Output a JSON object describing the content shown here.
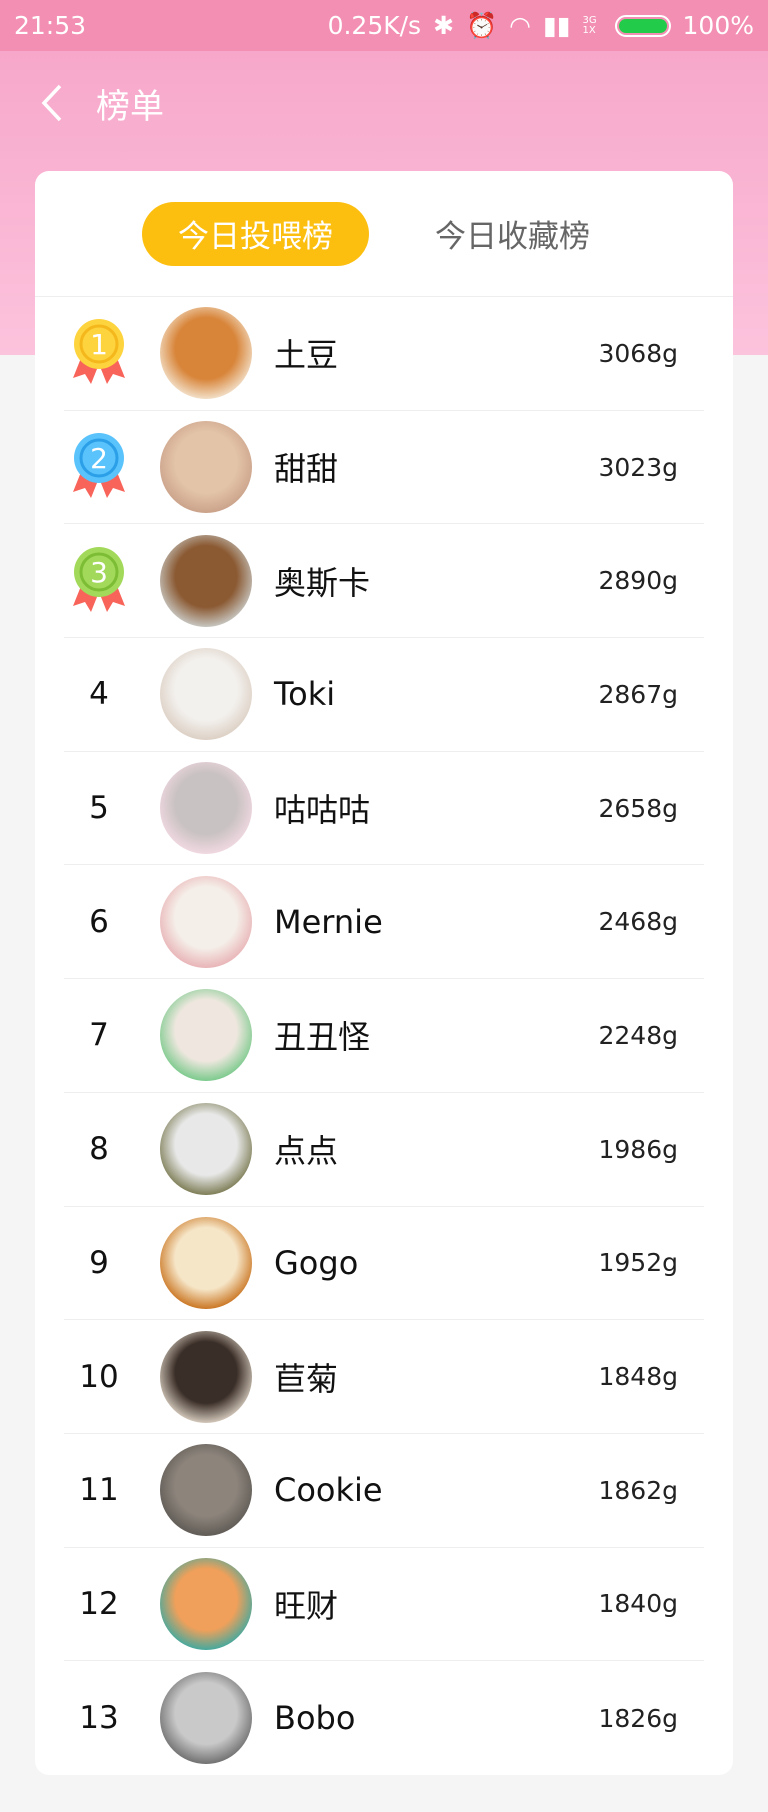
{
  "status_bar": {
    "time": "21:53",
    "speed": "0.25K/s",
    "network": "3G 1X",
    "battery": "100%",
    "battery_level": 100
  },
  "header": {
    "title": "榜单",
    "back_icon": "chevron-left-icon"
  },
  "tabs": [
    {
      "label": "今日投喂榜",
      "active": true
    },
    {
      "label": "今日收藏榜",
      "active": false
    }
  ],
  "colors": {
    "accent": "#fcbf10",
    "header_pink": "#f38fb2",
    "gold": "#fdd33e",
    "silver_blue": "#5ac3fb",
    "bronze_green": "#a3d95a",
    "ribbon": "#f8645a"
  },
  "ranking": [
    {
      "rank": "1",
      "name": "土豆",
      "value": "3068g",
      "avatar": [
        "#d8853a",
        "#f3e2cc"
      ]
    },
    {
      "rank": "2",
      "name": "甜甜",
      "value": "3023g",
      "avatar": [
        "#e3c4a8",
        "#caa18a"
      ]
    },
    {
      "rank": "3",
      "name": "奥斯卡",
      "value": "2890g",
      "avatar": [
        "#8b5a33",
        "#c9c9c4"
      ]
    },
    {
      "rank": "4",
      "name": "Toki",
      "value": "2867g",
      "avatar": [
        "#f3f1ee",
        "#dccfc3"
      ]
    },
    {
      "rank": "5",
      "name": "咕咕咕",
      "value": "2658g",
      "avatar": [
        "#c9c2c2",
        "#f2d9e2"
      ]
    },
    {
      "rank": "6",
      "name": "Mernie",
      "value": "2468g",
      "avatar": [
        "#f5efe9",
        "#e8b2b5"
      ]
    },
    {
      "rank": "7",
      "name": "丑丑怪",
      "value": "2248g",
      "avatar": [
        "#efe7df",
        "#78c98a"
      ]
    },
    {
      "rank": "8",
      "name": "点点",
      "value": "1986g",
      "avatar": [
        "#e8e8e8",
        "#7a7a52"
      ]
    },
    {
      "rank": "9",
      "name": "Gogo",
      "value": "1952g",
      "avatar": [
        "#f6e6c8",
        "#c9731e"
      ]
    },
    {
      "rank": "10",
      "name": "苣菊",
      "value": "1848g",
      "avatar": [
        "#3a2e28",
        "#d8cdbf"
      ]
    },
    {
      "rank": "11",
      "name": "Cookie",
      "value": "1862g",
      "avatar": [
        "#8d857c",
        "#5f5a55"
      ]
    },
    {
      "rank": "12",
      "name": "旺财",
      "value": "1840g",
      "avatar": [
        "#f0a05a",
        "#3fa9a0"
      ]
    },
    {
      "rank": "13",
      "name": "Bobo",
      "value": "1826g",
      "avatar": [
        "#c9c9c9",
        "#6e6e6e"
      ]
    }
  ]
}
